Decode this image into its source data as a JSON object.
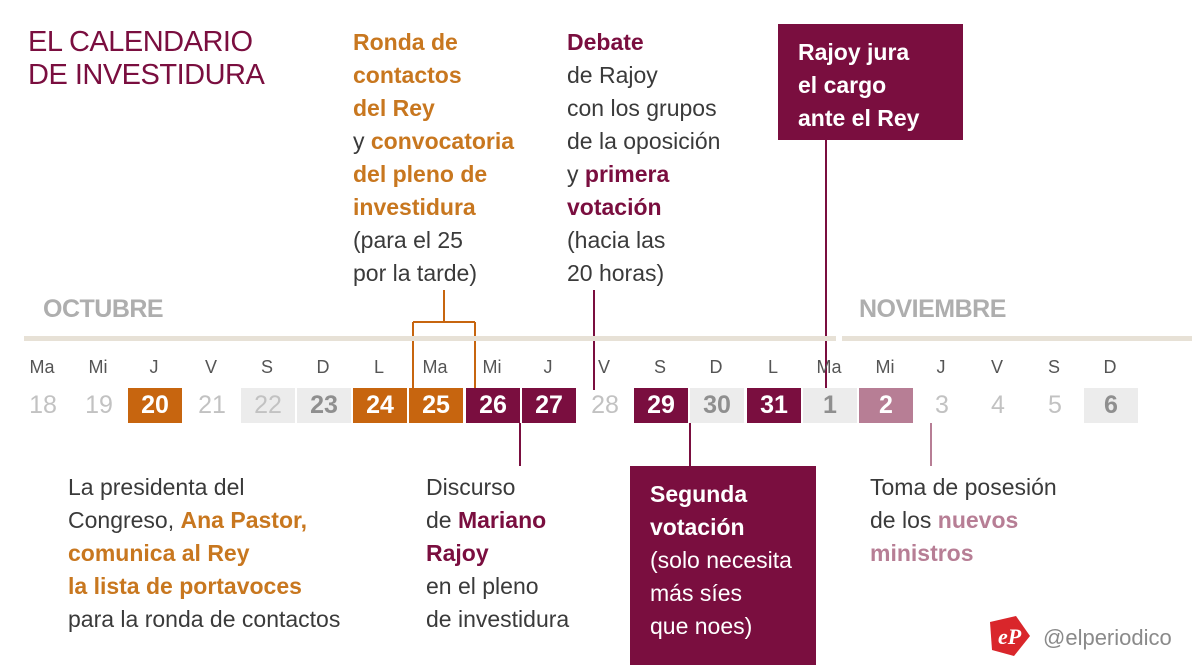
{
  "title": [
    "EL CALENDARIO",
    "DE INVESTIDURA"
  ],
  "months": {
    "october": "OCTUBRE",
    "november": "NOVIEMBRE"
  },
  "days": [
    {
      "dow": "Ma",
      "num": "18",
      "style": "plain"
    },
    {
      "dow": "Mi",
      "num": "19",
      "style": "plain"
    },
    {
      "dow": "J",
      "num": "20",
      "style": "orange"
    },
    {
      "dow": "V",
      "num": "21",
      "style": "plain"
    },
    {
      "dow": "S",
      "num": "22",
      "style": "weekend"
    },
    {
      "dow": "D",
      "num": "23",
      "style": "weekend-b"
    },
    {
      "dow": "L",
      "num": "24",
      "style": "orange"
    },
    {
      "dow": "Ma",
      "num": "25",
      "style": "orange"
    },
    {
      "dow": "Mi",
      "num": "26",
      "style": "wine"
    },
    {
      "dow": "J",
      "num": "27",
      "style": "wine"
    },
    {
      "dow": "V",
      "num": "28",
      "style": "plain"
    },
    {
      "dow": "S",
      "num": "29",
      "style": "wine"
    },
    {
      "dow": "D",
      "num": "30",
      "style": "weekend-b"
    },
    {
      "dow": "L",
      "num": "31",
      "style": "wine"
    },
    {
      "dow": "Ma",
      "num": "1",
      "style": "weekend-b"
    },
    {
      "dow": "Mi",
      "num": "2",
      "style": "pink"
    },
    {
      "dow": "J",
      "num": "3",
      "style": "plain"
    },
    {
      "dow": "V",
      "num": "4",
      "style": "plain"
    },
    {
      "dow": "S",
      "num": "5",
      "style": "plain"
    },
    {
      "dow": "D",
      "num": "6",
      "style": "weekend-b"
    }
  ],
  "annotations": {
    "ronda": {
      "l1": "Ronda de",
      "l2": "contactos",
      "l3": "del Rey",
      "l4a": "y ",
      "l4b": "convocatoria",
      "l5": "del pleno de",
      "l6": "investidura",
      "l7": "(para el 25",
      "l8": "por la tarde)"
    },
    "debate": {
      "l1": "Debate",
      "l2": "de Rajoy",
      "l3": "con los grupos",
      "l4": "de la oposición",
      "l5a": "y ",
      "l5b": "primera",
      "l6": "votación",
      "l7": "(hacia las",
      "l8": "20 horas)"
    },
    "jura": {
      "l1": "Rajoy jura",
      "l2": "el cargo",
      "l3": "ante el Rey"
    },
    "pastor": {
      "l1": "La presidenta del",
      "l2a": "Congreso, ",
      "l2b": "Ana Pastor,",
      "l3": "comunica al Rey",
      "l4": "la lista de portavoces",
      "l5": "para la ronda de contactos"
    },
    "discurso": {
      "l1": "Discurso",
      "l2a": "de ",
      "l2b": "Mariano",
      "l3": "Rajoy",
      "l4": "en el pleno",
      "l5": "de investidura"
    },
    "segunda": {
      "l1": "Segunda",
      "l2": "votación",
      "l3": "(solo necesita",
      "l4": "más síes",
      "l5": "que noes)"
    },
    "toma": {
      "l1": "Toma de posesión",
      "l2a": "de los ",
      "l2b": "nuevos",
      "l3": "ministros"
    }
  },
  "footer": {
    "handle": "@elperiodico",
    "logo_text": "eP"
  },
  "colors": {
    "orange": "#c7650f",
    "wine": "#7a0e3f",
    "pink": "#b77e95",
    "gray": "#ececec"
  }
}
